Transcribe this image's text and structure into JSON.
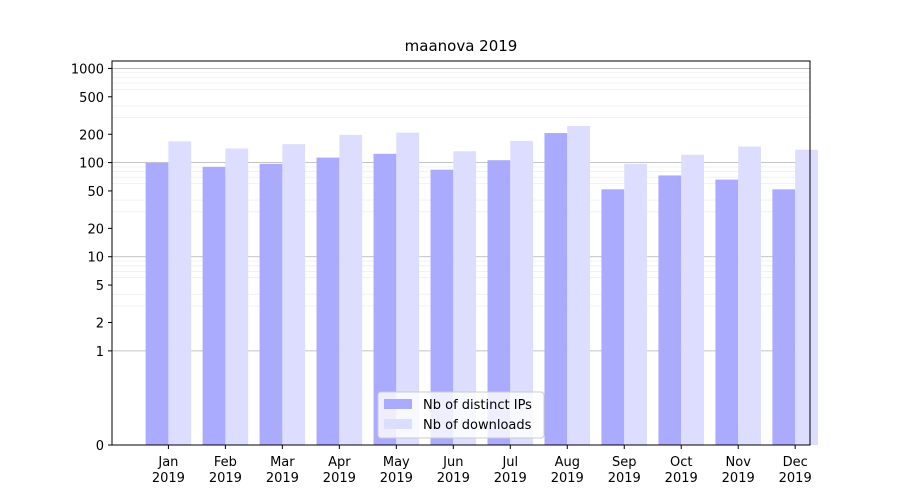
{
  "chart_data": {
    "type": "bar",
    "title": "maanova 2019",
    "xlabel": "",
    "ylabel": "",
    "y_scale": "symlog",
    "yticks": [
      0,
      1,
      2,
      5,
      10,
      20,
      50,
      100,
      200,
      500,
      1000
    ],
    "ylim": [
      0,
      1200
    ],
    "grid": true,
    "legend_position": "lower-center",
    "categories": [
      "Jan\n2019",
      "Feb\n2019",
      "Mar\n2019",
      "Apr\n2019",
      "May\n2019",
      "Jun\n2019",
      "Jul\n2019",
      "Aug\n2019",
      "Sep\n2019",
      "Oct\n2019",
      "Nov\n2019",
      "Dec\n2019"
    ],
    "series": [
      {
        "name": "Nb of distinct IPs",
        "color": "#aaaaff",
        "values": [
          100,
          90,
          97,
          113,
          124,
          84,
          106,
          206,
          52,
          73,
          66,
          52
        ]
      },
      {
        "name": "Nb of downloads",
        "color": "#ddddff",
        "values": [
          168,
          141,
          157,
          197,
          208,
          132,
          170,
          245,
          97,
          121,
          148,
          137
        ]
      }
    ]
  }
}
